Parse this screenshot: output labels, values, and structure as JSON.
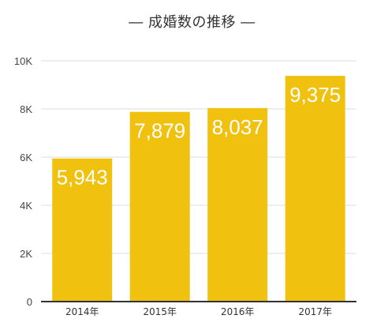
{
  "chart_data": {
    "type": "bar",
    "title": "― 成婚数の推移 ―",
    "categories": [
      "2014年",
      "2015年",
      "2016年",
      "2017年"
    ],
    "values": [
      5943,
      7879,
      8037,
      9375
    ],
    "data_labels": [
      "5,943",
      "7,879",
      "8,037",
      "9,375"
    ],
    "ylim": [
      0,
      10000
    ],
    "yticks": [
      0,
      2000,
      4000,
      6000,
      8000,
      10000
    ],
    "ytick_labels": [
      "0",
      "2K",
      "4K",
      "6K",
      "8K",
      "10K"
    ],
    "xlabel": "",
    "ylabel": "",
    "grid": true,
    "colors": {
      "bar": "#F0C20F",
      "grid": "#dddddd",
      "axis": "#333333"
    }
  }
}
